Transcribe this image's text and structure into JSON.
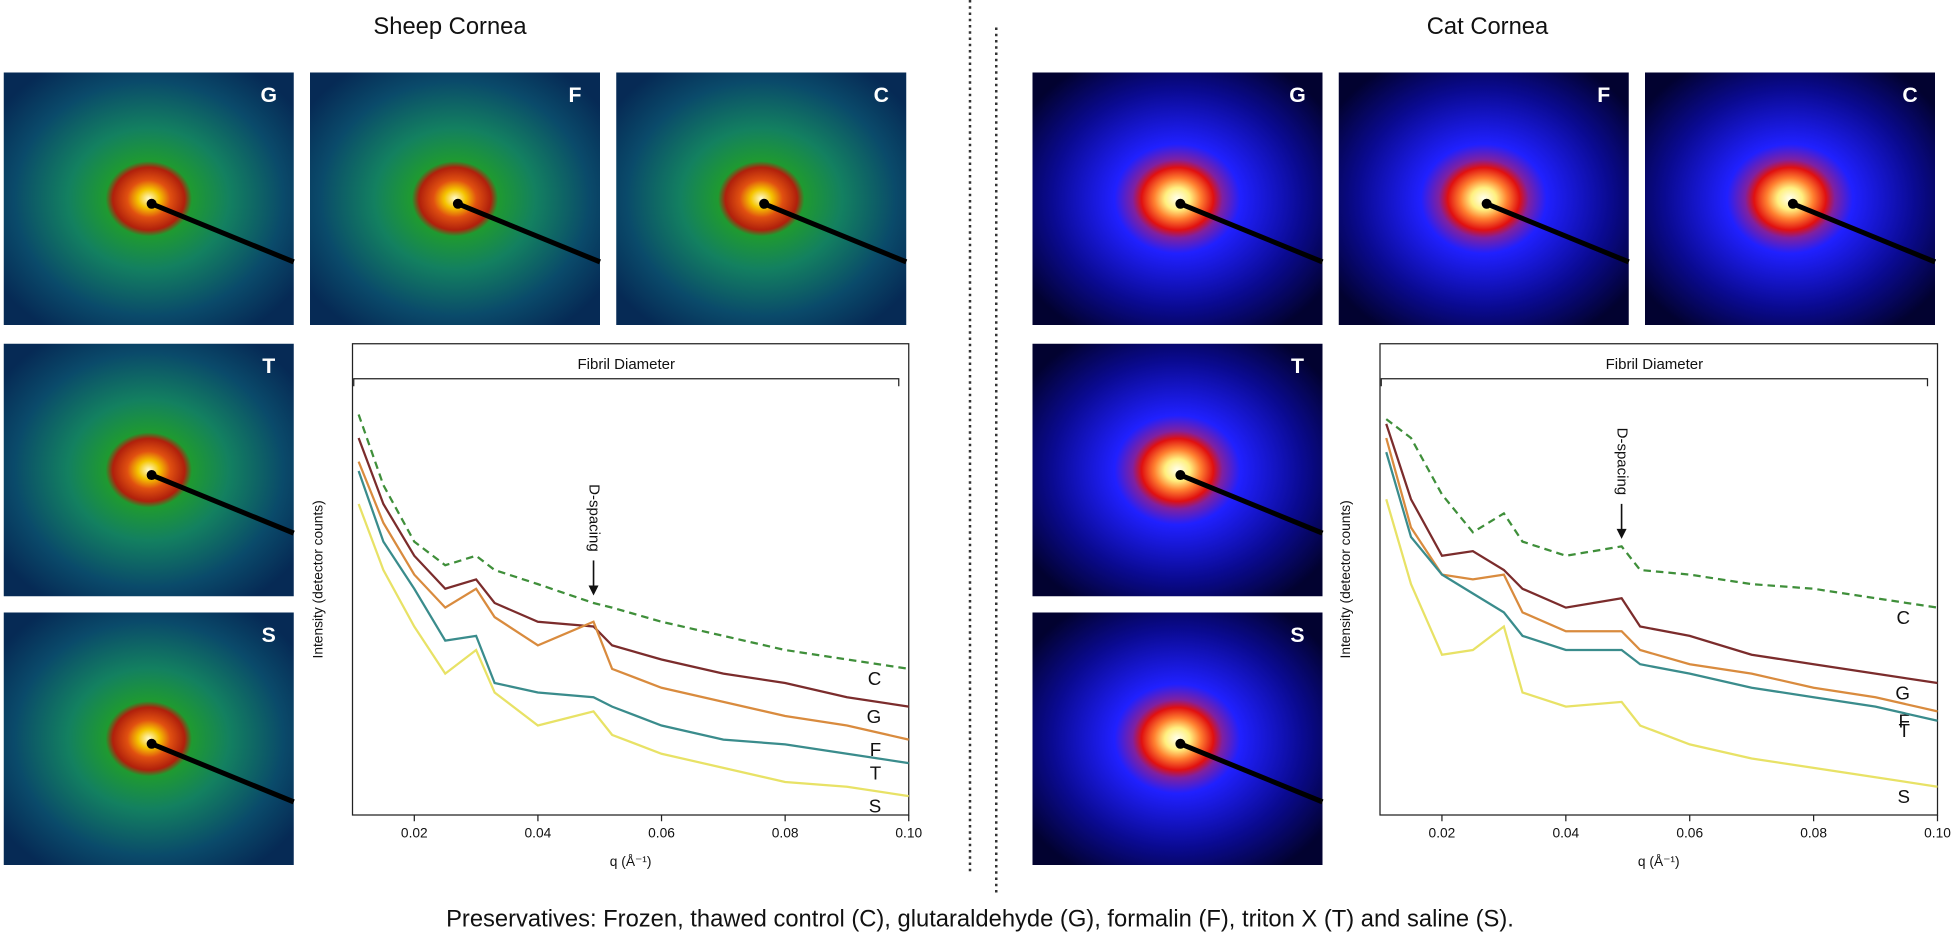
{
  "chart_data": [
    {
      "type": "line",
      "title": "Sheep Cornea",
      "x_label": "q (Å⁻¹)",
      "y_label": "Intensity (detector counts)",
      "panel_labels": [
        "G",
        "F",
        "C",
        "T",
        "S"
      ],
      "palette": "green",
      "annotations": [
        {
          "text": "Fibril Diameter"
        },
        {
          "text": "D-spacing",
          "x": 0.049
        }
      ],
      "xlim": [
        0.01,
        0.1
      ],
      "xticks": [
        0.02,
        0.04,
        0.06,
        0.08,
        {
          "value": 0.1,
          "label": "0.10"
        }
      ],
      "ylim": [
        0,
        100
      ],
      "x": [
        0.011,
        0.015,
        0.02,
        0.025,
        0.03,
        0.033,
        0.04,
        0.049,
        0.052,
        0.06,
        0.07,
        0.08,
        0.09,
        0.1
      ],
      "series": [
        {
          "name": "C",
          "color": "#3f8f3a",
          "dashed": true,
          "values": [
            85,
            70,
            58,
            53,
            55,
            52,
            49,
            45,
            44,
            41,
            38,
            35,
            33,
            31
          ]
        },
        {
          "name": "G",
          "color": "#7b2c2c",
          "values": [
            80,
            66,
            55,
            48,
            50,
            45,
            41,
            40,
            36,
            33,
            30,
            28,
            25,
            23
          ]
        },
        {
          "name": "F",
          "color": "#d98b3e",
          "values": [
            75,
            62,
            51,
            44,
            48,
            42,
            36,
            41,
            31,
            27,
            24,
            21,
            19,
            16
          ]
        },
        {
          "name": "T",
          "color": "#3a8c8c",
          "values": [
            73,
            58,
            48,
            37,
            38,
            28,
            26,
            25,
            23,
            19,
            16,
            15,
            13,
            11
          ]
        },
        {
          "name": "S",
          "color": "#e8e266",
          "values": [
            66,
            52,
            40,
            30,
            35,
            26,
            19,
            22,
            17,
            13,
            10,
            7,
            6,
            4
          ]
        }
      ]
    },
    {
      "type": "line",
      "title": "Cat Cornea",
      "x_label": "q (Å⁻¹)",
      "y_label": "Intensity (detector counts)",
      "panel_labels": [
        "G",
        "F",
        "C",
        "T",
        "S"
      ],
      "palette": "blue",
      "annotations": [
        {
          "text": "Fibril Diameter"
        },
        {
          "text": "D-spacing",
          "x": 0.049
        }
      ],
      "xlim": [
        0.01,
        0.1
      ],
      "xticks": [
        0.02,
        0.04,
        0.06,
        0.08,
        {
          "value": 0.1,
          "label": "0.10"
        }
      ],
      "ylim": [
        0,
        100
      ],
      "x": [
        0.011,
        0.015,
        0.02,
        0.025,
        0.03,
        0.033,
        0.04,
        0.049,
        0.052,
        0.06,
        0.07,
        0.08,
        0.09,
        0.1
      ],
      "series": [
        {
          "name": "C",
          "color": "#3f8f3a",
          "dashed": true,
          "values": [
            84,
            80,
            68,
            60,
            64,
            58,
            55,
            57,
            52,
            51,
            49,
            48,
            46,
            44
          ]
        },
        {
          "name": "G",
          "color": "#7b2c2c",
          "values": [
            83,
            67,
            55,
            56,
            52,
            48,
            44,
            46,
            40,
            38,
            34,
            32,
            30,
            28
          ]
        },
        {
          "name": "F",
          "color": "#d98b3e",
          "values": [
            80,
            61,
            51,
            50,
            51,
            43,
            39,
            39,
            35,
            32,
            30,
            27,
            25,
            22
          ]
        },
        {
          "name": "T",
          "color": "#3a8c8c",
          "values": [
            77,
            59,
            51,
            47,
            43,
            38,
            35,
            35,
            32,
            30,
            27,
            25,
            23,
            20
          ]
        },
        {
          "name": "S",
          "color": "#e8e266",
          "values": [
            67,
            49,
            34,
            35,
            40,
            26,
            23,
            24,
            19,
            15,
            12,
            10,
            8,
            6
          ]
        }
      ]
    }
  ],
  "caption": "Preservatives: Frozen, thawed control (C), glutaraldehyde (G), formalin (F), triton X (T) and saline (S)."
}
